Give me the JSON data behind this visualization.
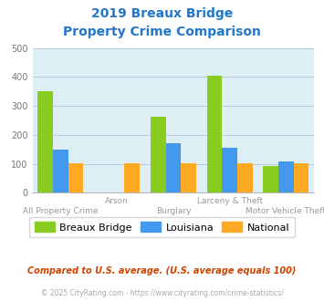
{
  "title_line1": "2019 Breaux Bridge",
  "title_line2": "Property Crime Comparison",
  "title_color": "#2277cc",
  "categories": [
    "All Property Crime",
    "Arson",
    "Burglary",
    "Larceny & Theft",
    "Motor Vehicle Theft"
  ],
  "breaux_bridge": [
    350,
    0,
    263,
    406,
    93
  ],
  "louisiana": [
    150,
    0,
    170,
    154,
    107
  ],
  "national": [
    102,
    103,
    103,
    102,
    102
  ],
  "color_bb": "#88cc22",
  "color_la": "#4499ee",
  "color_na": "#ffaa22",
  "ylim": [
    0,
    500
  ],
  "yticks": [
    0,
    100,
    200,
    300,
    400,
    500
  ],
  "bg_color": "#ddeef4",
  "note_text": "Compared to U.S. average. (U.S. average equals 100)",
  "footer_text": "© 2025 CityRating.com - https://www.cityrating.com/crime-statistics/",
  "note_color": "#cc4400",
  "footer_color": "#aaaaaa",
  "legend_labels": [
    "Breaux Bridge",
    "Louisiana",
    "National"
  ],
  "bar_width": 0.27,
  "upper_xlabels": [
    "",
    "Arson",
    "",
    "Larceny & Theft",
    ""
  ],
  "lower_xlabels": [
    "All Property Crime",
    "",
    "Burglary",
    "",
    "Motor Vehicle Theft"
  ]
}
